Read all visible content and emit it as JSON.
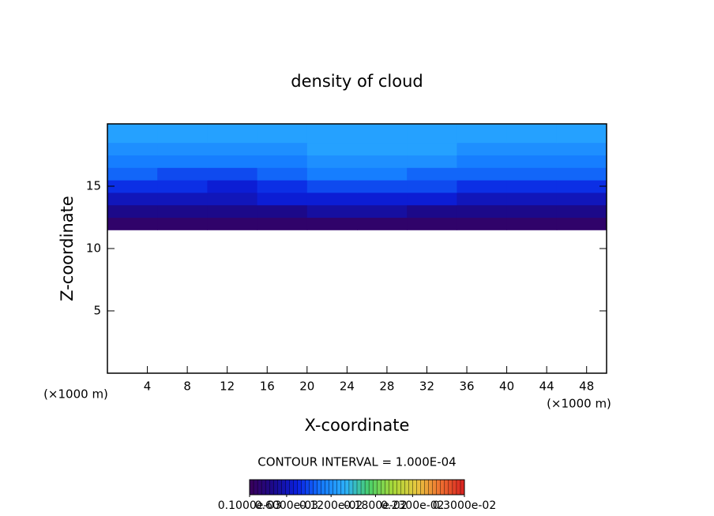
{
  "chart_data": {
    "type": "contour",
    "title": "density of cloud",
    "x_label": "X-coordinate",
    "y_label": "Z-coordinate",
    "x_unit": "(×1000 m)",
    "contour_interval": "CONTOUR INTERVAL = 1.000E-04",
    "xlim": [
      0,
      50
    ],
    "xticks": [
      4,
      8,
      12,
      16,
      20,
      24,
      28,
      32,
      36,
      40,
      44,
      48
    ],
    "ylim": [
      0,
      20
    ],
    "yticks": [
      5,
      10,
      15
    ],
    "x": [
      2.5,
      7.5,
      12.5,
      17.5,
      22.5,
      27.5,
      32.5,
      37.5,
      42.5,
      47.5
    ],
    "z": [
      12,
      13,
      14,
      15,
      16,
      17,
      18,
      19
    ],
    "values": [
      [
        0.0002,
        0.0002,
        0.0002,
        0.0002,
        0.0002,
        0.0002,
        0.0002,
        0.0002,
        0.0002,
        0.0002
      ],
      [
        0.0004,
        0.0004,
        0.0004,
        0.0004,
        0.0005,
        0.0005,
        0.0004,
        0.0004,
        0.0004,
        0.0004
      ],
      [
        0.0006,
        0.0006,
        0.0006,
        0.0007,
        0.0007,
        0.0007,
        0.0007,
        0.0006,
        0.0006,
        0.0006
      ],
      [
        0.0008,
        0.0008,
        0.0007,
        0.0008,
        0.0009,
        0.0009,
        0.0009,
        0.0008,
        0.0008,
        0.0008
      ],
      [
        0.001,
        0.0009,
        0.0009,
        0.001,
        0.0011,
        0.0011,
        0.001,
        0.001,
        0.001,
        0.001
      ],
      [
        0.0011,
        0.0011,
        0.0011,
        0.0011,
        0.0012,
        0.0012,
        0.0012,
        0.0011,
        0.0011,
        0.0011
      ],
      [
        0.0012,
        0.0012,
        0.0012,
        0.0012,
        0.0013,
        0.0013,
        0.0013,
        0.0012,
        0.0012,
        0.0012
      ],
      [
        0.0013,
        0.0013,
        0.0013,
        0.0013,
        0.0013,
        0.0013,
        0.0013,
        0.0013,
        0.0013,
        0.0013
      ]
    ],
    "clim": [
      0.0001,
      0.003
    ],
    "colors": [
      "#3a005a",
      "#1a0a8c",
      "#0a20e0",
      "#1478ff",
      "#2cb0ff",
      "#4ad06a",
      "#a8d838",
      "#e8c840",
      "#f07030",
      "#d82020"
    ],
    "cticks": [
      {
        "value": 0.0001,
        "label": "0.1000e-03"
      },
      {
        "value": 0.0006,
        "label": "0.6000e-03"
      },
      {
        "value": 0.0012,
        "label": "0.1200e-02"
      },
      {
        "value": 0.0018,
        "label": "0.1800e-02"
      },
      {
        "value": 0.0023,
        "label": "0.2300e-02"
      },
      {
        "value": 0.003,
        "label": "0.3000e-02"
      }
    ]
  }
}
